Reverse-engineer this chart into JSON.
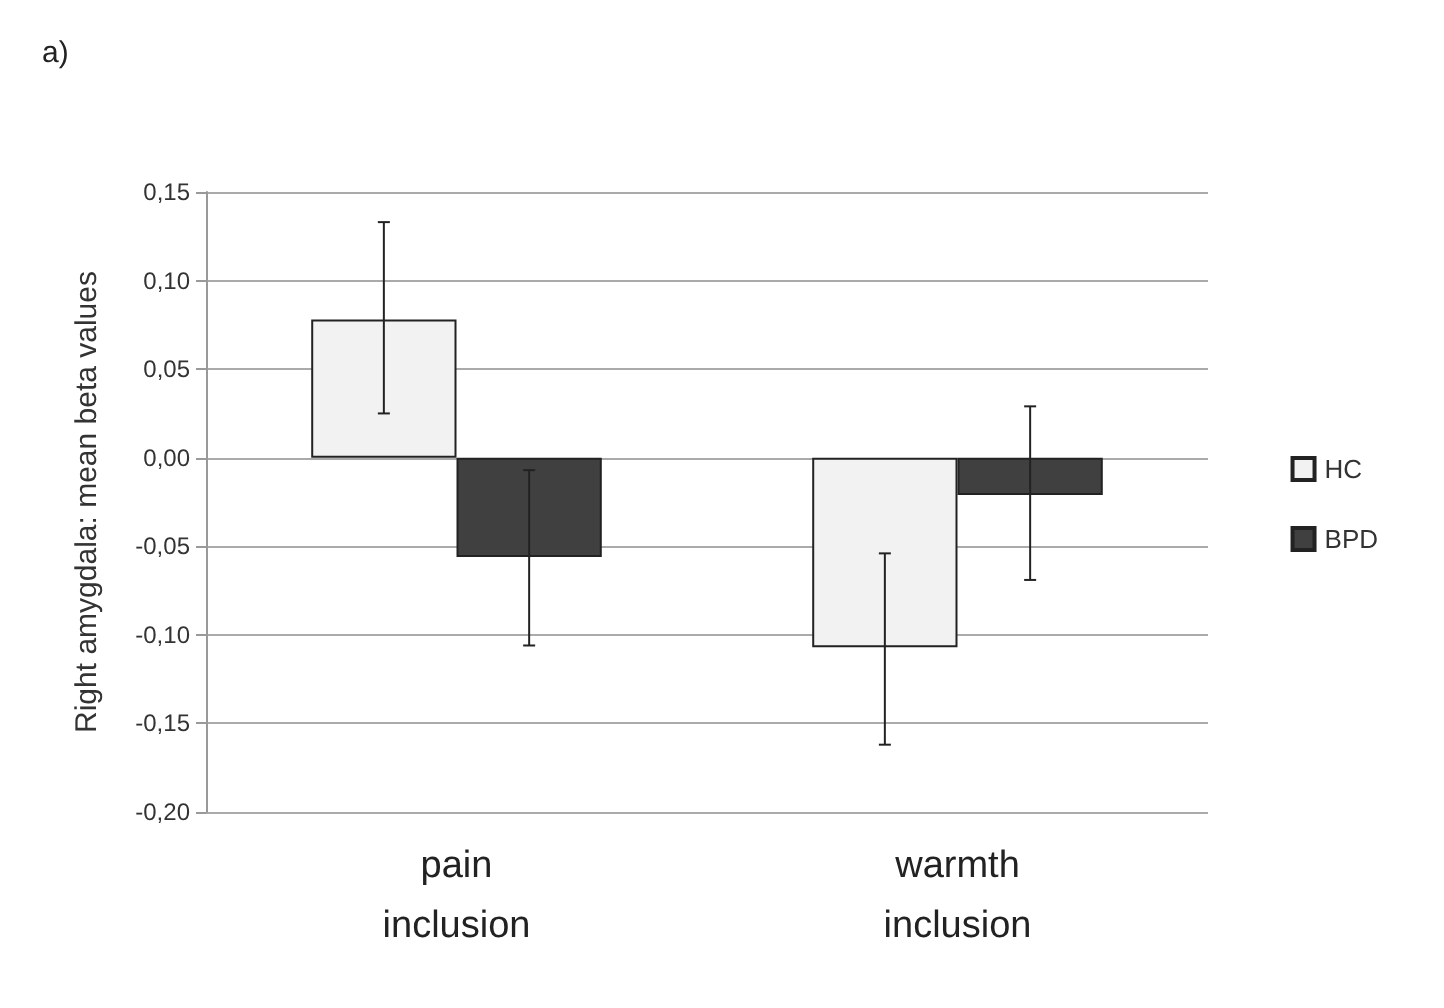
{
  "chart_data": {
    "type": "bar",
    "title": "a)",
    "ylabel": "Right amygdala: mean beta values",
    "categories": [
      "pain\ninclusion",
      "warmth\ninclusion"
    ],
    "series": [
      {
        "name": "HC",
        "color": "#f2f2f2",
        "values": [
          0.078,
          -0.107
        ],
        "errors": [
          [
            0.025,
            0.133
          ],
          [
            -0.162,
            -0.054
          ]
        ]
      },
      {
        "name": "BPD",
        "color": "#404040",
        "values": [
          -0.056,
          -0.021
        ],
        "errors": [
          [
            -0.106,
            -0.007
          ],
          [
            -0.069,
            0.029
          ]
        ]
      }
    ],
    "ylim": [
      -0.2,
      0.15
    ],
    "yticks": [
      {
        "value": -0.2,
        "label": "-0,20"
      },
      {
        "value": -0.15,
        "label": "-0,15"
      },
      {
        "value": -0.1,
        "label": "-0,10"
      },
      {
        "value": -0.05,
        "label": "-0,05"
      },
      {
        "value": 0,
        "label": "0,00"
      },
      {
        "value": 0.05,
        "label": "0,05"
      },
      {
        "value": 0.1,
        "label": "0,10"
      },
      {
        "value": 0.15,
        "label": "0,15"
      }
    ],
    "grid": "y",
    "legend": "right"
  }
}
